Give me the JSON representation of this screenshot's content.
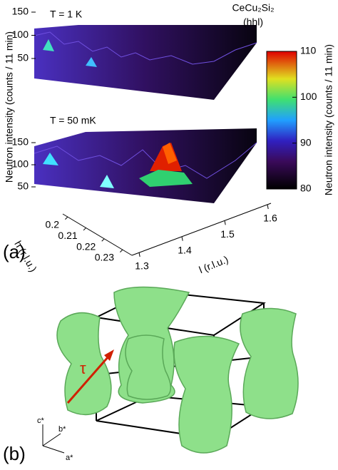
{
  "panel_a": {
    "label": "(a)",
    "compound": "CeCu₂Si₂",
    "direction": "(hhl)",
    "top_plot": {
      "title": "T = 1 K",
      "zticks": [
        50,
        100,
        150
      ]
    },
    "bottom_plot": {
      "title": "T = 50 mK",
      "zticks": [
        50,
        100,
        150
      ]
    },
    "z_label": "Neutron intensity (counts / 11 min)",
    "h_axis": {
      "label": "h (r.l.u.)",
      "ticks": [
        0.2,
        0.21,
        0.22,
        0.23
      ]
    },
    "l_axis": {
      "label": "l (r.l.u.)",
      "ticks": [
        1.3,
        1.4,
        1.5,
        1.6
      ]
    },
    "colorbar": {
      "label": "Neutron intensity (counts / 11 min)",
      "lim": [
        80,
        110
      ],
      "ticks": [
        80,
        90,
        100,
        110
      ]
    }
  },
  "panel_b": {
    "label": "(b)",
    "vector_label": "τ",
    "axes": [
      "c*",
      "b*",
      "a*"
    ]
  }
}
